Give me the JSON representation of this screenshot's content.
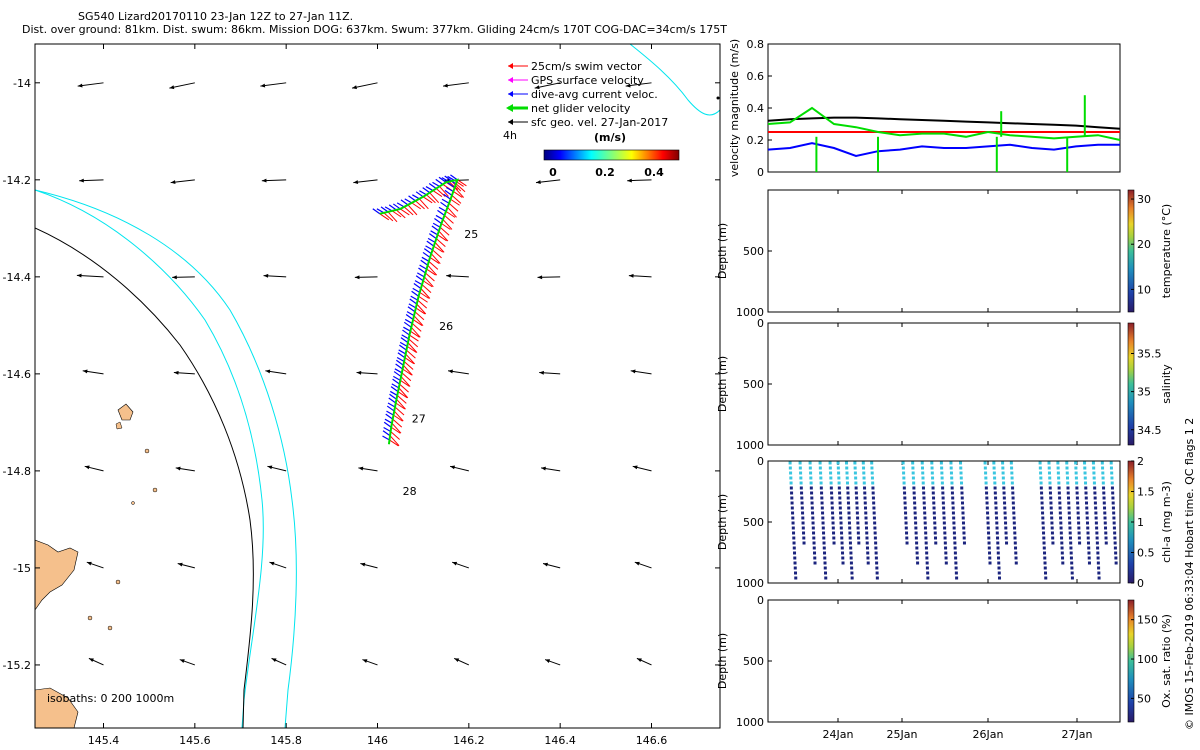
{
  "header": {
    "title": "SG540 Lizard20170110 23-Jan 12Z to 27-Jan 11Z.",
    "subtitle": "Dist. over ground: 81km. Dist. swum: 86km. Mission DOG: 637km. Swum: 377km. Gliding 24cm/s 170T COG-DAC=34cm/s 175T"
  },
  "side_note": "© IMOS 15-Feb-2019 06:33:04 Hobart time. QC flags 1  2",
  "chart_data": [
    {
      "type": "map",
      "name": "track-map",
      "xlim": [
        145.25,
        146.75
      ],
      "ylim": [
        -15.33,
        -13.92
      ],
      "xticks": [
        145.4,
        145.6,
        145.8,
        146,
        146.2,
        146.4,
        146.6
      ],
      "xtick_labels": [
        "145.4",
        "145.6",
        "145.8",
        "146",
        "146.2",
        "146.4",
        "146.6"
      ],
      "yticks": [
        -14,
        -14.2,
        -14.4,
        -14.6,
        -14.8,
        -15,
        -15.2
      ],
      "ytick_labels": [
        "-14",
        "-14.2",
        "-14.4",
        "-14.6",
        "-14.8",
        "-15",
        "-15.2"
      ],
      "legend": {
        "position": "top-right",
        "items": [
          {
            "label": "25cm/s swim vector",
            "color": "#ff0000"
          },
          {
            "label": "GPS surface velocity",
            "color": "#ff00ff"
          },
          {
            "label": "dive-avg current veloc.",
            "color": "#0000ff"
          },
          {
            "label": "net glider velocity",
            "color": "#00dd00"
          },
          {
            "label": "sfc geo. vel. 27-Jan-2017",
            "color": "#000000"
          }
        ],
        "time_marker_label": "4h"
      },
      "colorbar": {
        "label": "(m/s)",
        "ticks": [
          "0",
          "0.2",
          "0.4"
        ],
        "range": [
          0,
          0.5
        ]
      },
      "isobaths_label": "isobaths: 0   200  1000m",
      "track": [
        [
          146.005,
          -14.27
        ],
        [
          146.05,
          -14.26
        ],
        [
          146.1,
          -14.235
        ],
        [
          146.15,
          -14.205
        ],
        [
          146.175,
          -14.2
        ],
        [
          146.16,
          -14.24
        ],
        [
          146.14,
          -14.29
        ],
        [
          146.115,
          -14.36
        ],
        [
          146.09,
          -14.44
        ],
        [
          146.07,
          -14.52
        ],
        [
          146.055,
          -14.59
        ],
        [
          146.04,
          -14.66
        ],
        [
          146.03,
          -14.71
        ],
        [
          146.025,
          -14.745
        ]
      ],
      "day_labels": [
        {
          "label": "25",
          "lon": 146.19,
          "lat": -14.32
        },
        {
          "label": "26",
          "lon": 146.135,
          "lat": -14.51
        },
        {
          "label": "27",
          "lon": 146.075,
          "lat": -14.7
        },
        {
          "label": "28",
          "lon": 146.055,
          "lat": -14.85
        }
      ],
      "geo_vectors": {
        "lons": [
          145.4,
          145.6,
          145.8,
          146.0,
          146.2,
          146.4,
          146.6
        ],
        "lats": [
          -14.0,
          -14.2,
          -14.4,
          -14.6,
          -14.8,
          -15.0,
          -15.2
        ],
        "note": "surface geostrophic velocity arrows, mostly westward in north turning south-westward in south"
      }
    },
    {
      "type": "line",
      "name": "velocity-panel",
      "ylabel": "velocity magnitude (m/s)",
      "ylim": [
        0,
        0.8
      ],
      "yticks": [
        "0",
        "0.2",
        "0.4",
        "0.6",
        "0.8"
      ],
      "x": [
        0,
        0.25,
        0.5,
        0.75,
        1,
        1.25,
        1.5,
        1.75,
        2,
        2.25,
        2.5,
        2.75,
        3,
        3.25,
        3.5,
        3.75,
        4
      ],
      "series": [
        {
          "name": "swim",
          "color": "#ff0000",
          "values": [
            0.25,
            0.25,
            0.25,
            0.25,
            0.25,
            0.25,
            0.25,
            0.25,
            0.25,
            0.25,
            0.25,
            0.25,
            0.25,
            0.25,
            0.25,
            0.25,
            0.25
          ]
        },
        {
          "name": "sfc geo",
          "color": "#000000",
          "values": [
            0.32,
            0.33,
            0.335,
            0.34,
            0.34,
            0.335,
            0.33,
            0.325,
            0.32,
            0.315,
            0.31,
            0.305,
            0.3,
            0.295,
            0.29,
            0.28,
            0.27
          ]
        },
        {
          "name": "dive-avg current",
          "color": "#0000ff",
          "values": [
            0.14,
            0.15,
            0.18,
            0.15,
            0.1,
            0.13,
            0.14,
            0.16,
            0.15,
            0.15,
            0.16,
            0.17,
            0.15,
            0.14,
            0.16,
            0.17,
            0.17
          ]
        },
        {
          "name": "net glider",
          "color": "#00dd00",
          "values": [
            0.3,
            0.31,
            0.4,
            0.3,
            0.28,
            0.25,
            0.23,
            0.24,
            0.24,
            0.22,
            0.25,
            0.23,
            0.22,
            0.21,
            0.22,
            0.23,
            0.2
          ]
        }
      ]
    },
    {
      "type": "heatmap",
      "name": "temperature-panel",
      "ylabel": "Depth (m)",
      "ylim": [
        1000,
        0
      ],
      "yticks": [
        "500",
        "1000"
      ],
      "colorbar_label": "temperature (°C)",
      "colorbar_ticks": [
        "10",
        "20",
        "30"
      ],
      "colorbar_range": [
        5,
        32
      ]
    },
    {
      "type": "heatmap",
      "name": "salinity-panel",
      "ylabel": "Depth (m)",
      "ylim": [
        1000,
        0
      ],
      "yticks": [
        "0",
        "500",
        "1000"
      ],
      "colorbar_label": "salinity",
      "colorbar_ticks": [
        "34.5",
        "35",
        "35.5"
      ],
      "colorbar_range": [
        34.3,
        35.9
      ]
    },
    {
      "type": "scatter",
      "name": "chlorophyll-panel",
      "ylabel": "Depth (m)",
      "ylim": [
        1000,
        0
      ],
      "yticks": [
        "0",
        "500",
        "1000"
      ],
      "colorbar_label": "chl-a (mg m-3)",
      "colorbar_ticks": [
        "0",
        "0.5",
        "1",
        "1.5",
        "2"
      ],
      "colorbar_range": [
        0,
        2
      ],
      "dive_count": 36
    },
    {
      "type": "heatmap",
      "name": "oxygen-panel",
      "ylabel": "Depth (m)",
      "ylim": [
        1000,
        0
      ],
      "yticks": [
        "0",
        "500",
        "1000"
      ],
      "xtick_labels": [
        "24Jan",
        "25Jan",
        "26Jan",
        "27Jan"
      ],
      "colorbar_label": "Ox. sat. ratio (%)",
      "colorbar_ticks": [
        "50",
        "100",
        "150"
      ],
      "colorbar_range": [
        20,
        175
      ]
    }
  ]
}
